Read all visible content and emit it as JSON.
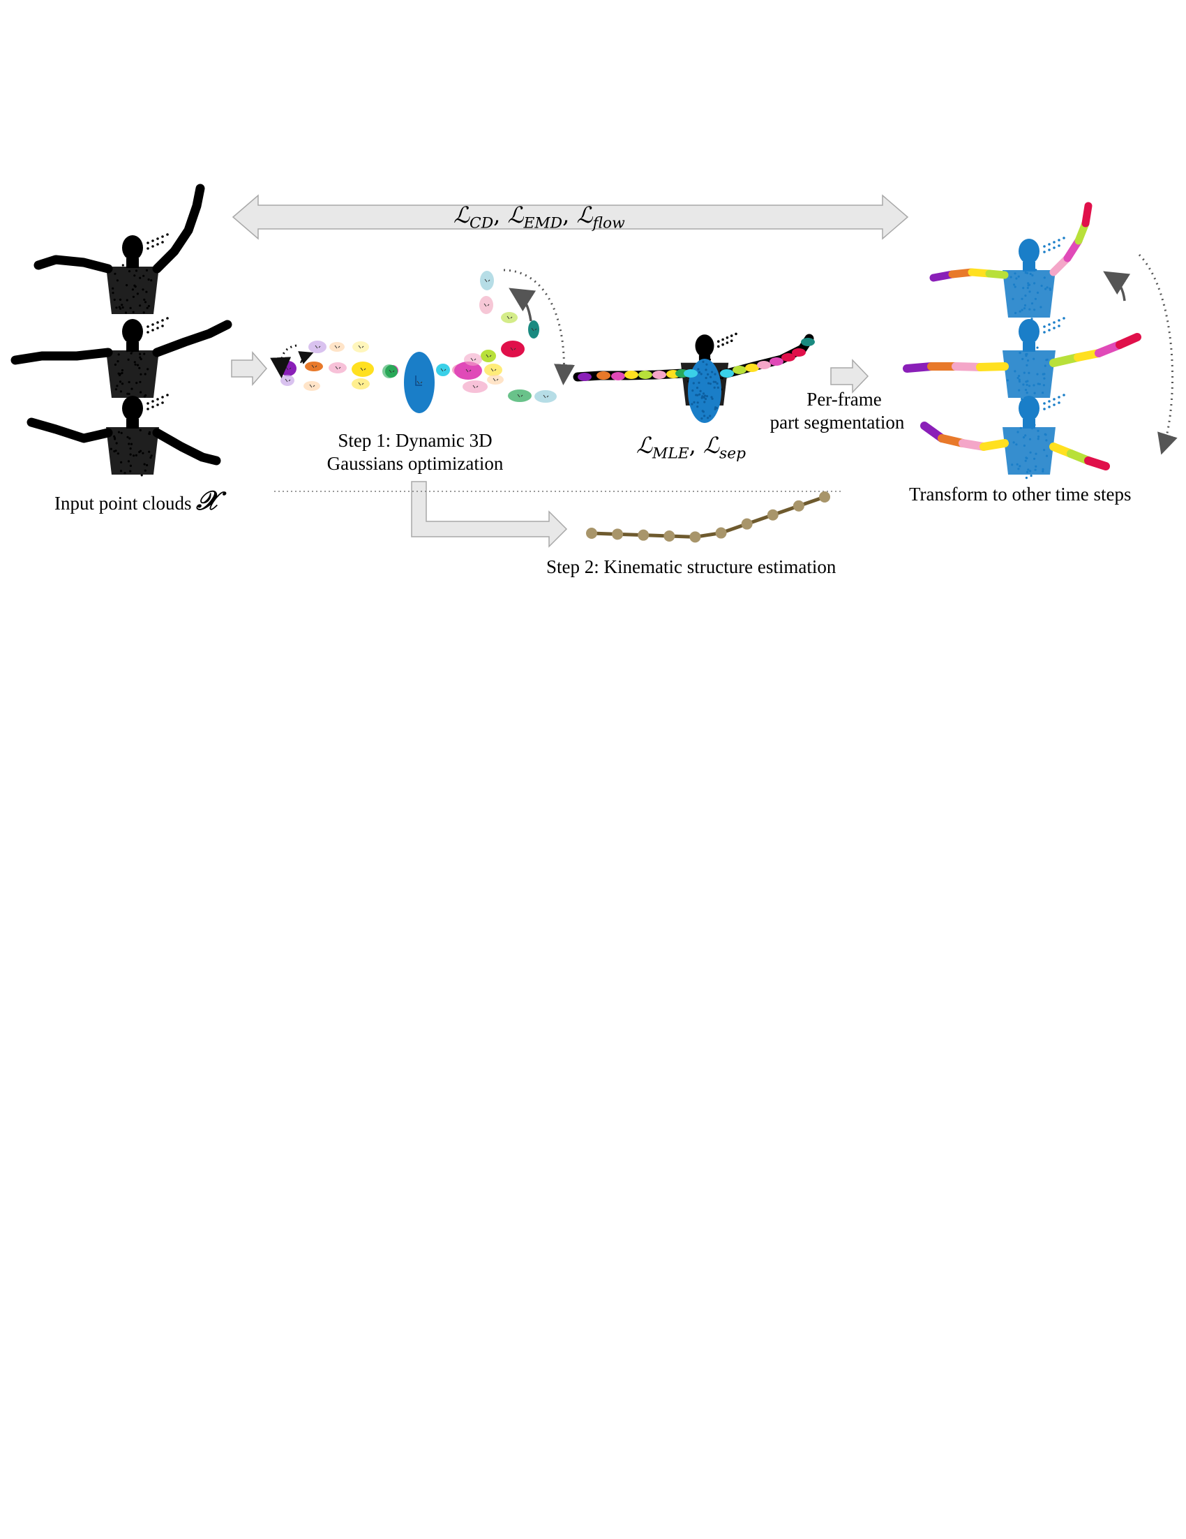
{
  "labels": {
    "input": "Input point clouds",
    "input_symbol": "𝒳",
    "step1_line1": "Step 1: Dynamic 3D",
    "step1_line2": "Gaussians optimization",
    "perframe_line1": "Per-frame",
    "perframe_line2": "part segmentation",
    "transform": "Transform to other time steps",
    "step2": "Step 2: Kinematic structure estimation"
  },
  "losses": {
    "top": {
      "L1": "ℒ",
      "s1": "CD",
      "sep1": ", ",
      "L2": "ℒ",
      "s2": "EMD",
      "sep2": ", ",
      "L3": "ℒ",
      "s3": "flow"
    },
    "mid": {
      "L1": "ℒ",
      "s1": "MLE",
      "sep1": ", ",
      "L2": "ℒ",
      "s2": "sep"
    }
  },
  "colors": {
    "pointcloud": "#000000",
    "torso": "#1a7ec8",
    "arrow_fill": "#e8e8e8",
    "arrow_stroke": "#a8a8a8",
    "chain": "#6e5a2e",
    "chain_node": "#a8956a",
    "part_palette": [
      "#8a1fb8",
      "#e8792a",
      "#ffe020",
      "#b8e03a",
      "#f4a6c8",
      "#e04ab8",
      "#e0104a",
      "#1a8a80",
      "#b6dde6",
      "#f6c7d6",
      "#c9a8e8",
      "#2aa858",
      "#ffd8b0"
    ]
  },
  "chain": {
    "node_count": 10
  }
}
